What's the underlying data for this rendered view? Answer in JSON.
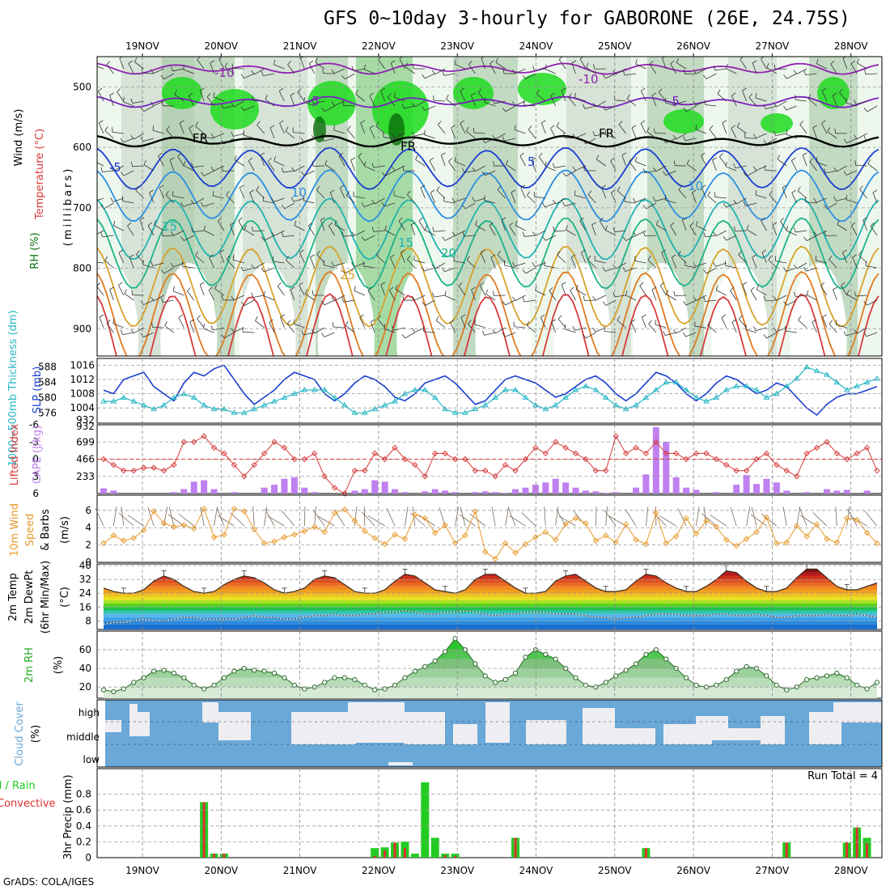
{
  "title": "GFS 0~10day 3-hourly for GABORONE (26E, 24.75S)",
  "credit": "GrADS: COLA/IGES",
  "colors": {
    "rh": "#1fdc1f",
    "rh_dark": "#0a6e0a",
    "grey": "#c9c9c9",
    "slp": "#1a3fd0",
    "thick": "#27b6c6",
    "li": "#d83a3a",
    "cape": "#c080f0",
    "wind10": "#e89a2a",
    "barb": "#7a6a5a",
    "rh2m": "#22aa22",
    "cloud": "#6aa8d8",
    "cloud_light": "#eeeef2",
    "precip_total": "#22cc22",
    "precip_conv": "#e03030"
  },
  "chart_data": [
    {
      "type": "heatmap",
      "panel": "upper-air",
      "ylabel_parts": [
        "RH (%)",
        "Temperature (°C)",
        "Wind (m/s)"
      ],
      "yunit": "(millibars)",
      "yticks": [
        "500",
        "600",
        "700",
        "800",
        "900"
      ],
      "xticks": [
        "19NOV",
        "20NOV",
        "21NOV",
        "22NOV",
        "23NOV",
        "24NOV",
        "25NOV",
        "26NOV",
        "27NOV",
        "28NOV"
      ],
      "contour_labels": [
        "-10",
        "-10",
        "-5",
        "-5",
        "FR",
        "FR",
        "FR",
        "-5",
        "-5",
        "-10",
        "-10",
        "-15",
        "15",
        "20",
        "25",
        "25",
        "-15",
        "0"
      ]
    },
    {
      "type": "line",
      "panel": "slp-thickness",
      "ylabel_left": "1000~500mb Thickness (dm)",
      "ylabel_right": "SLP (mb)",
      "yticks_left": [
        "588",
        "584",
        "580",
        "576"
      ],
      "yticks_right": [
        "1016",
        "1012",
        "1008",
        "1004",
        "932"
      ],
      "series": [
        {
          "name": "SLP (mb)",
          "values": [
            1009,
            1008,
            1012,
            1013,
            1014,
            1010,
            1008,
            1006,
            1011,
            1014,
            1013,
            1015,
            1016,
            1012,
            1008,
            1005,
            1007,
            1009,
            1012,
            1014,
            1013,
            1012,
            1008,
            1006,
            1008,
            1011,
            1013,
            1012,
            1010,
            1007,
            1006,
            1008,
            1011,
            1012,
            1013,
            1011,
            1008,
            1005,
            1006,
            1009,
            1012,
            1013,
            1012,
            1011,
            1009,
            1007,
            1008,
            1010,
            1012,
            1013,
            1011,
            1008,
            1006,
            1008,
            1011,
            1014,
            1013,
            1011,
            1008,
            1006,
            1008,
            1011,
            1013,
            1012,
            1010,
            1008,
            1009,
            1011,
            1010,
            1007,
            1004,
            1002,
            1005,
            1007,
            1008,
            1008,
            1009,
            1010
          ]
        },
        {
          "name": "Thickness (dm)",
          "values": [
            579,
            579,
            580,
            579,
            578,
            577,
            578,
            580,
            581,
            580,
            578,
            577,
            577,
            576,
            576,
            577,
            578,
            579,
            580,
            581,
            582,
            582,
            582,
            580,
            578,
            576,
            576,
            577,
            578,
            579,
            581,
            582,
            582,
            580,
            577,
            576,
            576,
            577,
            578,
            580,
            582,
            582,
            580,
            578,
            577,
            578,
            580,
            582,
            583,
            582,
            580,
            578,
            577,
            578,
            580,
            582,
            584,
            584,
            582,
            580,
            579,
            580,
            582,
            583,
            583,
            582,
            580,
            581,
            583,
            585,
            588,
            587,
            586,
            584,
            582,
            583,
            584,
            585
          ]
        }
      ]
    },
    {
      "type": "bar",
      "panel": "li-cape",
      "ylabel_left": "Lifted Index",
      "ylabel_right": "CAPE (J/kg)",
      "yticks_left": [
        "-6",
        "-3",
        "0",
        "3",
        "6"
      ],
      "yticks_right": [
        "932",
        "699",
        "466",
        "233"
      ],
      "series": [
        {
          "name": "Lifted Index",
          "values": [
            0,
            1,
            2,
            2,
            1.5,
            1.5,
            2,
            1,
            -3,
            -3,
            -4,
            -2,
            -1,
            1,
            3,
            1,
            -1,
            -3,
            -2,
            0,
            0,
            -1,
            3,
            5,
            6,
            2,
            2,
            -1,
            0,
            -2,
            0,
            1,
            3,
            -1,
            -1,
            0,
            0,
            2,
            2,
            3,
            1,
            2,
            0,
            -2,
            -1,
            -3,
            -2,
            -1,
            0,
            2,
            2,
            -4,
            -1,
            -2,
            -1,
            -3,
            -1,
            -1,
            0,
            -1,
            -1,
            0,
            1,
            2,
            2,
            0,
            -1,
            1,
            2,
            3,
            -1,
            -2,
            -3,
            -1,
            0,
            -1,
            -2,
            2
          ]
        },
        {
          "name": "CAPE (J/kg)",
          "values": [
            70,
            40,
            0,
            0,
            0,
            0,
            0,
            20,
            60,
            160,
            180,
            60,
            0,
            20,
            0,
            0,
            80,
            120,
            200,
            220,
            80,
            20,
            0,
            0,
            0,
            40,
            60,
            180,
            160,
            60,
            20,
            0,
            30,
            60,
            40,
            20,
            0,
            20,
            30,
            20,
            10,
            60,
            80,
            120,
            150,
            200,
            150,
            80,
            40,
            30,
            10,
            20,
            0,
            80,
            260,
            900,
            700,
            220,
            80,
            50,
            0,
            20,
            0,
            120,
            250,
            130,
            200,
            150,
            40,
            0,
            20,
            0,
            60,
            40,
            50,
            0,
            40,
            0
          ]
        }
      ]
    },
    {
      "type": "line",
      "panel": "wind10m",
      "ylabel": "10m Wind Speed & Barbs (m/s)",
      "yticks": [
        "6",
        "4",
        "2",
        "0"
      ],
      "series": [
        {
          "name": "10m Wind Speed (m/s)",
          "values": [
            2.2,
            3.1,
            2.5,
            2.8,
            3.7,
            5.9,
            4.5,
            4.1,
            4.3,
            3.9,
            6.2,
            2.9,
            3.2,
            6.2,
            5.9,
            3.8,
            2.2,
            2.4,
            2.9,
            3.2,
            3.6,
            4.1,
            3.5,
            5.7,
            6.1,
            4.8,
            3.6,
            2.8,
            2.1,
            3.2,
            2.7,
            5.5,
            5.1,
            3.4,
            4.3,
            2.2,
            3.1,
            5.9,
            1.2,
            0.4,
            2.2,
            1.1,
            2.1,
            2.9,
            3.5,
            2.6,
            4.4,
            5.1,
            4.5,
            2.5,
            3.1,
            2.3,
            4.4,
            2.6,
            2.1,
            5.7,
            2.2,
            3.0,
            5.1,
            3.3,
            4.8,
            4.1,
            2.6,
            1.9,
            2.7,
            3.5,
            5.2,
            2.2,
            2.3,
            4.2,
            3.0,
            4.4,
            2.7,
            2.3,
            5.1,
            4.9,
            3.4,
            2.2
          ]
        }
      ]
    },
    {
      "type": "area",
      "panel": "temperature",
      "ylabel": "2m Temp 2m DewPt (6hr Min/Max) (°C)",
      "yticks": [
        "40",
        "32",
        "24",
        "16",
        "8"
      ],
      "series": [
        {
          "name": "2m Temp (°C)",
          "values": [
            27,
            25,
            24,
            24,
            26,
            31,
            34,
            32,
            28,
            25,
            24,
            25,
            29,
            32,
            34,
            33,
            30,
            26,
            24,
            25,
            27,
            32,
            34,
            33,
            29,
            25,
            24,
            24,
            26,
            31,
            35,
            34,
            30,
            26,
            25,
            24,
            26,
            32,
            35,
            35,
            31,
            27,
            24,
            24,
            25,
            31,
            34,
            35,
            31,
            27,
            25,
            25,
            26,
            31,
            35,
            34,
            30,
            27,
            25,
            25,
            28,
            32,
            37,
            36,
            31,
            27,
            25,
            25,
            27,
            33,
            38,
            38,
            33,
            28,
            26,
            26,
            28,
            30
          ]
        },
        {
          "name": "2m DewPt (°C)",
          "values": [
            6,
            7,
            7,
            8,
            9,
            8,
            8,
            9,
            10,
            10,
            9,
            9,
            9,
            9,
            10,
            11,
            10,
            10,
            9,
            9,
            10,
            11,
            11,
            12,
            11,
            11,
            12,
            12,
            13,
            13,
            14,
            13,
            12,
            12,
            13,
            13,
            14,
            13,
            12,
            11,
            12,
            12,
            13,
            13,
            13,
            12,
            12,
            12,
            11,
            10,
            10,
            9,
            10,
            10,
            11,
            12,
            12,
            12,
            11,
            11,
            11,
            12,
            12,
            11,
            11,
            12,
            11,
            10,
            10,
            11,
            11,
            11,
            12,
            11,
            11,
            12,
            11,
            10
          ]
        }
      ]
    },
    {
      "type": "area",
      "panel": "rh2m",
      "ylabel": "2m RH (%)",
      "yticks": [
        "60",
        "40",
        "20"
      ],
      "series": [
        {
          "name": "2m RH (%)",
          "values": [
            17,
            15,
            18,
            25,
            30,
            37,
            38,
            35,
            30,
            22,
            18,
            22,
            30,
            37,
            40,
            38,
            37,
            35,
            30,
            22,
            18,
            20,
            25,
            30,
            30,
            28,
            22,
            17,
            18,
            22,
            30,
            37,
            42,
            48,
            58,
            72,
            60,
            45,
            32,
            25,
            28,
            35,
            52,
            60,
            55,
            50,
            40,
            30,
            22,
            20,
            25,
            32,
            38,
            45,
            55,
            60,
            50,
            40,
            30,
            22,
            20,
            22,
            28,
            37,
            42,
            40,
            32,
            22,
            17,
            20,
            28,
            30,
            32,
            35,
            30,
            22,
            18,
            25
          ]
        }
      ]
    },
    {
      "type": "heatmap",
      "panel": "cloud-cover",
      "ylabel": "Cloud Cover (%)",
      "row_labels": [
        "high",
        "middle",
        "low"
      ]
    },
    {
      "type": "bar",
      "panel": "precip",
      "ylabel_left": "Total / Rain Convective",
      "ylabel": "3hr Precip (mm)",
      "yticks": [
        "0.8",
        "0.6",
        "0.4",
        "0.2",
        "0"
      ],
      "run_total_label": "Run Total = 4",
      "series": [
        {
          "name": "Total",
          "values": [
            0,
            0,
            0,
            0,
            0,
            0,
            0,
            0,
            0,
            0,
            0.7,
            0.05,
            0.05,
            0,
            0,
            0,
            0,
            0,
            0,
            0,
            0,
            0,
            0,
            0,
            0,
            0,
            0,
            0.12,
            0.13,
            0.19,
            0.2,
            0.05,
            0.95,
            0.25,
            0.05,
            0.05,
            0,
            0,
            0,
            0,
            0,
            0.25,
            0,
            0,
            0,
            0,
            0,
            0,
            0,
            0,
            0,
            0,
            0,
            0,
            0.12,
            0,
            0,
            0,
            0,
            0,
            0,
            0,
            0,
            0,
            0,
            0,
            0,
            0,
            0.19,
            0,
            0,
            0,
            0,
            0,
            0.19,
            0.38,
            0.25,
            0
          ]
        },
        {
          "name": "Convective",
          "values": [
            0,
            0,
            0,
            0,
            0,
            0,
            0,
            0,
            0,
            0,
            0.7,
            0.05,
            0.05,
            0,
            0,
            0,
            0,
            0,
            0,
            0,
            0,
            0,
            0,
            0,
            0,
            0,
            0,
            0.02,
            0.09,
            0.19,
            0.12,
            0,
            0,
            0,
            0.03,
            0.02,
            0,
            0,
            0,
            0,
            0,
            0.25,
            0,
            0,
            0,
            0,
            0,
            0,
            0,
            0,
            0,
            0,
            0,
            0,
            0.12,
            0,
            0,
            0,
            0,
            0,
            0,
            0,
            0,
            0,
            0,
            0,
            0,
            0,
            0.19,
            0,
            0,
            0,
            0,
            0,
            0.19,
            0.38,
            0.18,
            0
          ]
        }
      ]
    }
  ],
  "tick_labels": {
    "xaxis_top": [
      "19NOV",
      "20NOV",
      "21NOV",
      "22NOV",
      "23NOV",
      "24NOV",
      "25NOV",
      "26NOV",
      "27NOV",
      "28NOV"
    ],
    "xaxis_bottom": [
      "19NOV",
      "20NOV",
      "21NOV",
      "22NOV",
      "23NOV",
      "24NOV",
      "25NOV",
      "26NOV",
      "27NOV",
      "28NOV"
    ]
  },
  "labels": {
    "rh_key": "RH (%)",
    "temp_key": "Temperature (°C)",
    "wind_key": "Wind (m/s)",
    "mb": "(millibars)",
    "thick": "1000~500mb Thickness (dm)",
    "slp": "SLP (mb)",
    "li": "Lifted Index",
    "cape": "CAPE (J/kg)",
    "wind10a": "10m Wind",
    "wind10b": "Speed",
    "wind10c": "& Barbs",
    "wind10d": "(m/s)",
    "t2a": "2m Temp",
    "t2b": "2m DewPt",
    "t2c": "(6hr Min/Max)",
    "t2d": "(°C)",
    "rh2a": "2m RH",
    "rh2b": "(%)",
    "cca": "Cloud Cover",
    "ccb": "(%)",
    "pra": "Total / Rain",
    "prb": "Convective",
    "prc": "3hr Precip (mm)",
    "run_total": "Run Total = 4"
  }
}
